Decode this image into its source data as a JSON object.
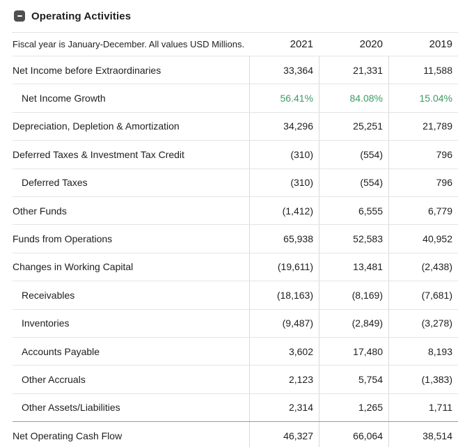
{
  "header": {
    "title": "Operating Activities",
    "collapse_icon": "minus-icon"
  },
  "table": {
    "note": "Fiscal year is January-December. All values USD Millions.",
    "years": [
      "2021",
      "2020",
      "2019"
    ],
    "rows": [
      {
        "label": "Net Income before Extraordinaries",
        "indent": false,
        "values": [
          "33,364",
          "21,331",
          "11,588"
        ]
      },
      {
        "label": "Net Income Growth",
        "indent": true,
        "growth": true,
        "values": [
          "56.41%",
          "84.08%",
          "15.04%"
        ]
      },
      {
        "label": "Depreciation, Depletion & Amortization",
        "indent": false,
        "values": [
          "34,296",
          "25,251",
          "21,789"
        ]
      },
      {
        "label": "Deferred Taxes & Investment Tax Credit",
        "indent": false,
        "values": [
          "(310)",
          "(554)",
          "796"
        ]
      },
      {
        "label": "Deferred Taxes",
        "indent": true,
        "values": [
          "(310)",
          "(554)",
          "796"
        ]
      },
      {
        "label": "Other Funds",
        "indent": false,
        "values": [
          "(1,412)",
          "6,555",
          "6,779"
        ]
      },
      {
        "label": "Funds from Operations",
        "indent": false,
        "values": [
          "65,938",
          "52,583",
          "40,952"
        ]
      },
      {
        "label": "Changes in Working Capital",
        "indent": false,
        "values": [
          "(19,611)",
          "13,481",
          "(2,438)"
        ]
      },
      {
        "label": "Receivables",
        "indent": true,
        "values": [
          "(18,163)",
          "(8,169)",
          "(7,681)"
        ]
      },
      {
        "label": "Inventories",
        "indent": true,
        "values": [
          "(9,487)",
          "(2,849)",
          "(3,278)"
        ]
      },
      {
        "label": "Accounts Payable",
        "indent": true,
        "values": [
          "3,602",
          "17,480",
          "8,193"
        ]
      },
      {
        "label": "Other Accruals",
        "indent": true,
        "values": [
          "2,123",
          "5,754",
          "(1,383)"
        ]
      },
      {
        "label": "Other Assets/Liabilities",
        "indent": true,
        "values": [
          "2,314",
          "1,265",
          "1,711"
        ]
      },
      {
        "label": "Net Operating Cash Flow",
        "indent": false,
        "total": true,
        "values": [
          "46,327",
          "66,064",
          "38,514"
        ]
      }
    ]
  },
  "colors": {
    "text": "#1e1e1e",
    "growth_green": "#3c9a62",
    "collapse_button_gray": "#4f4f4f",
    "row_line": "#e4e4e4",
    "column_line": "#d9d9d9",
    "total_row_line": "#9a9a9a",
    "dotted_line": "#c8c8c8",
    "background": "#ffffff"
  }
}
